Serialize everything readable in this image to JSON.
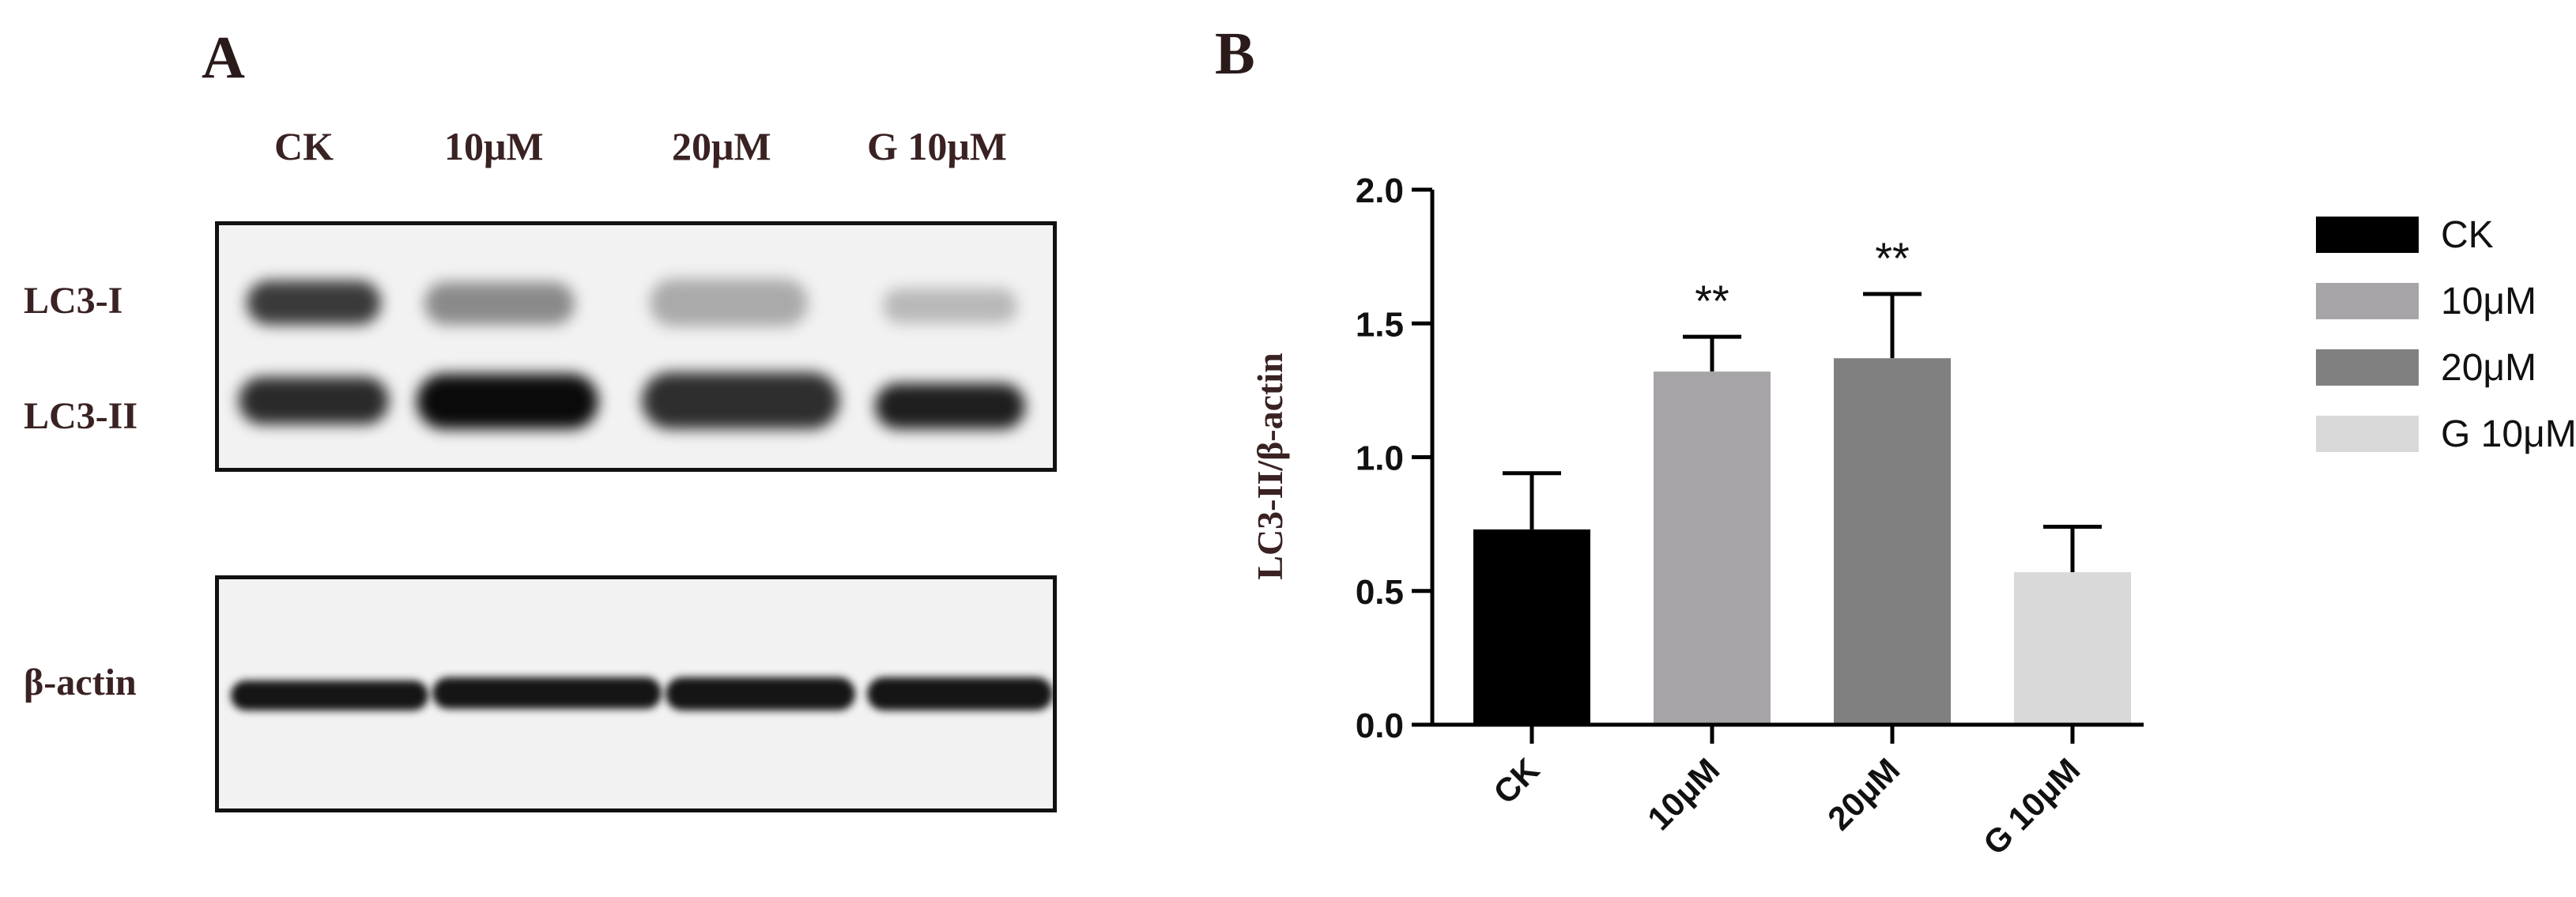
{
  "panel_a": {
    "letter": "A",
    "lanes": [
      "CK",
      "10μM",
      "20μM",
      "G 10μM"
    ],
    "rows": [
      "LC3-I",
      "LC3-II",
      "β-actin"
    ]
  },
  "panel_b": {
    "letter": "B"
  },
  "chart_data": {
    "type": "bar",
    "categories": [
      "CK",
      "10μM",
      "20μM",
      "G 10μM"
    ],
    "values": [
      0.73,
      1.32,
      1.37,
      0.57
    ],
    "errors": [
      0.21,
      0.13,
      0.24,
      0.17
    ],
    "significance": [
      "",
      "**",
      "**",
      ""
    ],
    "colors": [
      "#000000",
      "#a6a4a7",
      "#808080",
      "#d9d9d9"
    ],
    "ylabel": "LC3-II/β-actin",
    "xlabel": "",
    "ylim": [
      0,
      2.0
    ],
    "yticks": [
      "0.0",
      "0.5",
      "1.0",
      "1.5",
      "2.0"
    ],
    "legend": {
      "entries": [
        "CK",
        "10μM",
        "20μM",
        "G 10μM"
      ],
      "position": "right"
    },
    "grid": false
  }
}
